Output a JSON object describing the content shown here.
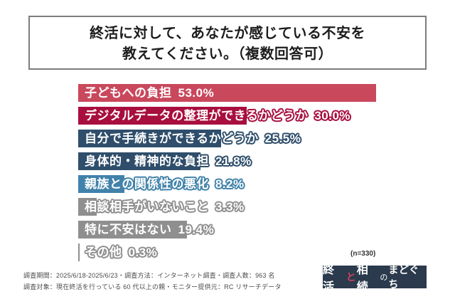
{
  "title": {
    "line1": "終活に対して、あなたが感じている不安を",
    "line2": "教えてください。（複数回答可）"
  },
  "chart_data": {
    "type": "bar",
    "orientation": "horizontal",
    "title": "終活に対して、あなたが感じている不安を教えてください。（複数回答可）",
    "categories": [
      "子どもへの負担",
      "デジタルデータの整理ができるかどうか",
      "自分で手続きができるかどうか",
      "身体的・精神的な負担",
      "親族との関係性の悪化",
      "相談相手がいないこと",
      "特に不安はない",
      "その他"
    ],
    "values": [
      53.0,
      30.0,
      25.5,
      21.8,
      8.2,
      3.3,
      19.4,
      0.3
    ],
    "value_labels": [
      "53.0%",
      "30.0%",
      "25.5%",
      "21.8%",
      "8.2%",
      "3.3%",
      "19.4%",
      "0.3%"
    ],
    "bar_colors": [
      "#c9485c",
      "#a80f3f",
      "#2f4e6b",
      "#2f4e6b",
      "#4182aa",
      "#8f8f8f",
      "#8f8f8f",
      "#8f8f8f"
    ],
    "unit": "%",
    "xlim": [
      0,
      66
    ],
    "grid": false,
    "legend_position": "none",
    "n_label": "(n=330)"
  },
  "footer": {
    "line1": "調査期間：2025/6/18-2025/6/23・調査方法：インターネット調査・調査人数：963 名",
    "line2": "調査対象：現在終活を行っている 60 代以上の親・モニター提供元：RC リサーチデータ"
  },
  "logo": {
    "seg1": "終活",
    "seg2": "と",
    "seg3": "相続",
    "seg4": "の",
    "seg5": "まどぐち",
    "bg_color": "#2b3a4d",
    "accent_color": "#d0435a"
  }
}
